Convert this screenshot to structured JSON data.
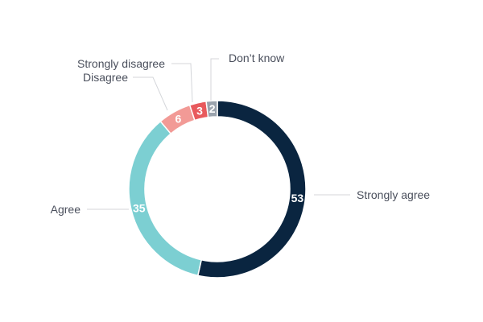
{
  "chart_data": {
    "type": "pie",
    "variant": "donut",
    "title": "",
    "categories": [
      "Strongly agree",
      "Agree",
      "Disagree",
      "Strongly disagree",
      "Don’t know"
    ],
    "values": [
      53,
      35,
      6,
      3,
      2
    ],
    "colors": [
      "#0a2540",
      "#7ccfd2",
      "#f29a96",
      "#e85a5d",
      "#9aa3ad"
    ],
    "value_labels": [
      "53",
      "35",
      "6",
      "3",
      "2"
    ],
    "legend": "none",
    "labels_placement": "outside with leader lines"
  }
}
